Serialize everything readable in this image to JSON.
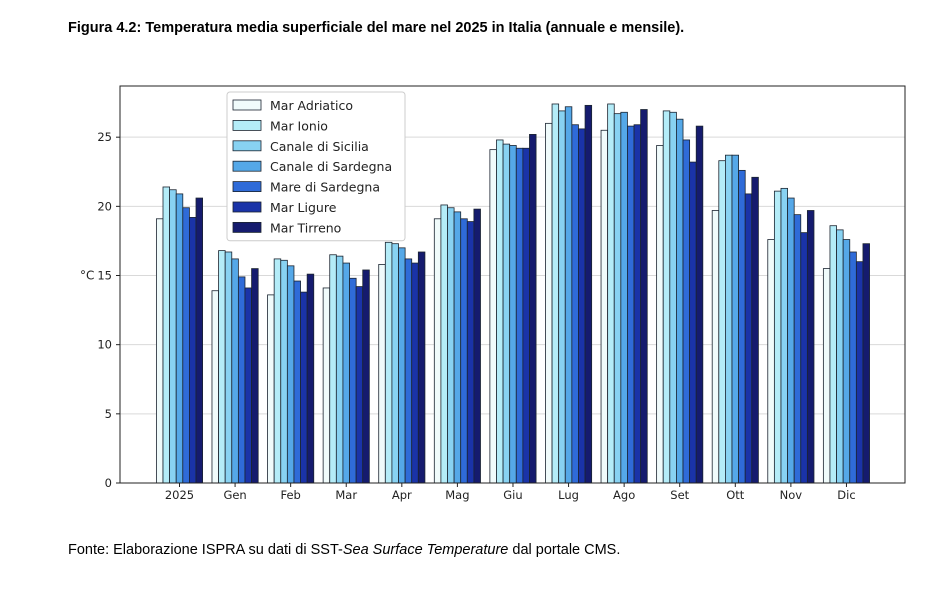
{
  "figure": {
    "title": "Figura 4.2: Temperatura media superficiale del mare nel 2025 in Italia (annuale e mensile).",
    "source_prefix": "Fonte: Elaborazione ISPRA su dati di SST-",
    "source_italic": "Sea Surface Temperature",
    "source_suffix": " dal portale CMS."
  },
  "chart_data": {
    "type": "bar",
    "title": "",
    "xlabel": "",
    "ylabel": "°C",
    "ylim": [
      0,
      28.7
    ],
    "yticks": [
      0,
      5,
      10,
      15,
      20,
      25
    ],
    "grid": true,
    "legend_position": "top-left",
    "categories": [
      "2025",
      "Gen",
      "Feb",
      "Mar",
      "Apr",
      "Mag",
      "Giu",
      "Lug",
      "Ago",
      "Set",
      "Ott",
      "Nov",
      "Dic"
    ],
    "series": [
      {
        "name": "Mar Adriatico",
        "color": "#f0fbfb",
        "values": [
          19.1,
          13.9,
          13.6,
          14.1,
          15.8,
          19.1,
          24.1,
          26.0,
          25.5,
          24.4,
          19.7,
          17.6,
          15.5
        ]
      },
      {
        "name": "Mar Ionio",
        "color": "#b4ecf8",
        "values": [
          21.4,
          16.8,
          16.2,
          16.5,
          17.4,
          20.1,
          24.8,
          27.4,
          27.4,
          26.9,
          23.3,
          21.1,
          18.6
        ]
      },
      {
        "name": "Canale di Sicilia",
        "color": "#88d2f2",
        "values": [
          21.2,
          16.7,
          16.1,
          16.4,
          17.3,
          19.9,
          24.5,
          26.9,
          26.7,
          26.8,
          23.7,
          21.3,
          18.3
        ]
      },
      {
        "name": "Canale di Sardegna",
        "color": "#55a8e8",
        "values": [
          20.9,
          16.2,
          15.7,
          15.9,
          17.0,
          19.6,
          24.4,
          27.2,
          26.8,
          26.3,
          23.7,
          20.6,
          17.6
        ]
      },
      {
        "name": "Mare di Sardegna",
        "color": "#2f6bd8",
        "values": [
          19.9,
          14.9,
          14.6,
          14.8,
          16.2,
          19.1,
          24.2,
          25.9,
          25.8,
          24.8,
          22.6,
          19.4,
          16.7
        ]
      },
      {
        "name": "Mar Ligure",
        "color": "#1a33a8",
        "values": [
          19.2,
          14.1,
          13.8,
          14.2,
          15.9,
          18.9,
          24.2,
          25.6,
          25.9,
          23.2,
          20.9,
          18.1,
          16.0
        ]
      },
      {
        "name": "Mar Tirreno",
        "color": "#151b6e",
        "values": [
          20.6,
          15.5,
          15.1,
          15.4,
          16.7,
          19.8,
          25.2,
          27.3,
          27.0,
          25.8,
          22.1,
          19.7,
          17.3
        ]
      }
    ]
  }
}
